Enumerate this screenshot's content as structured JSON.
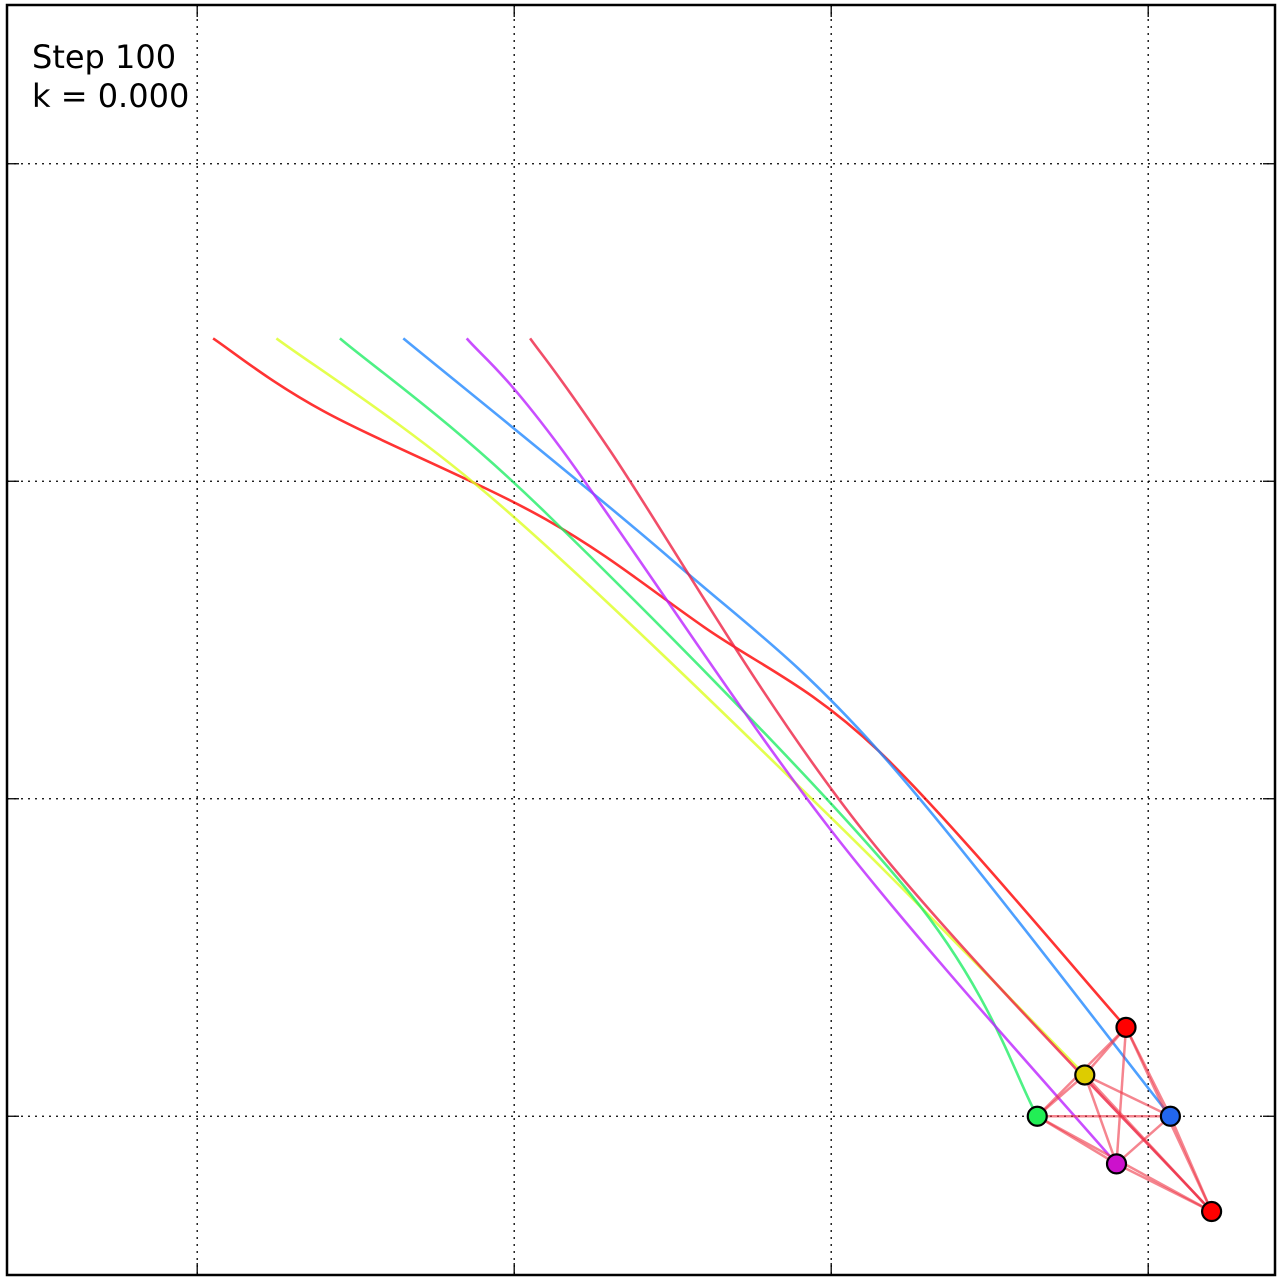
{
  "chart_data": {
    "type": "line",
    "annotations": {
      "step": "Step 100",
      "k": "k = 0.000"
    },
    "grid": true,
    "x_gridlines": [
      0.5,
      1.5,
      2.5,
      3.5
    ],
    "y_gridlines": [
      3.5,
      2.5,
      1.5,
      0.5
    ],
    "xlim": [
      -0.1,
      3.9
    ],
    "ylim": [
      0.0,
      4.0
    ],
    "series": [
      {
        "color": "#ff0000",
        "points": [
          [
            0.55,
            2.95
          ],
          [
            0.9,
            2.72
          ],
          [
            1.6,
            2.38
          ],
          [
            2.1,
            2.04
          ],
          [
            2.65,
            1.65
          ],
          [
            3.43,
            0.78
          ]
        ]
      },
      {
        "color": "#ddff22",
        "points": [
          [
            0.75,
            2.95
          ],
          [
            1.45,
            2.43
          ],
          [
            2.5,
            1.44
          ],
          [
            3.3,
            0.63
          ]
        ]
      },
      {
        "color": "#22ee66",
        "points": [
          [
            0.95,
            2.95
          ],
          [
            1.6,
            2.4
          ],
          [
            2.75,
            1.2
          ],
          [
            3.15,
            0.5
          ]
        ]
      },
      {
        "color": "#2288ff",
        "points": [
          [
            1.15,
            2.95
          ],
          [
            2.0,
            2.25
          ],
          [
            2.65,
            1.65
          ],
          [
            3.57,
            0.5
          ]
        ]
      },
      {
        "color": "#bb22ff",
        "points": [
          [
            1.35,
            2.95
          ],
          [
            1.65,
            2.6
          ],
          [
            2.5,
            1.4
          ],
          [
            3.4,
            0.35
          ]
        ]
      },
      {
        "color": "#ee2244",
        "points": [
          [
            1.55,
            2.95
          ],
          [
            1.8,
            2.6
          ],
          [
            2.6,
            1.4
          ],
          [
            3.7,
            0.2
          ]
        ]
      }
    ],
    "particles": [
      {
        "color": "#ff0000",
        "x": 3.43,
        "y": 0.78
      },
      {
        "color": "#ddcc00",
        "x": 3.3,
        "y": 0.63
      },
      {
        "color": "#22ee55",
        "x": 3.15,
        "y": 0.5
      },
      {
        "color": "#2266ee",
        "x": 3.57,
        "y": 0.5
      },
      {
        "color": "#cc11cc",
        "x": 3.4,
        "y": 0.35
      },
      {
        "color": "#ff0000",
        "x": 3.7,
        "y": 0.2
      }
    ],
    "links_color": "#ee3344"
  }
}
